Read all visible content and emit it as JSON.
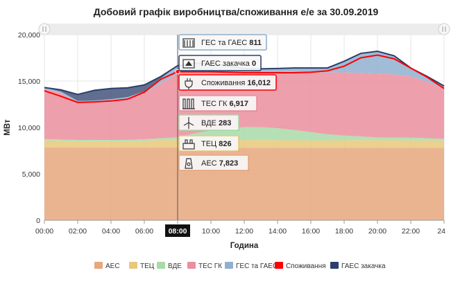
{
  "chart_data": {
    "type": "area",
    "title": "Добовий графік виробництва/споживання е/е за 30.09.2019",
    "ylabel": "МВт",
    "xlabel": "Година",
    "ylim": [
      0,
      20000
    ],
    "xlim": [
      0,
      24
    ],
    "yticks": [
      0,
      5000,
      10000,
      15000,
      20000
    ],
    "ytick_labels": [
      "0",
      "5,000",
      "10,000",
      "15,000",
      "20,000"
    ],
    "xticks": [
      0,
      2,
      4,
      6,
      8,
      10,
      12,
      14,
      16,
      18,
      20,
      22,
      24
    ],
    "xtick_labels": [
      "00:00",
      "02:00",
      "04:00",
      "06:00",
      "08:00",
      "10:00",
      "12:00",
      "14:00",
      "16:00",
      "18:00",
      "20:00",
      "22:00",
      "24"
    ],
    "highlight_x": 8,
    "x": [
      0,
      1,
      2,
      3,
      4,
      5,
      6,
      7,
      8,
      9,
      10,
      11,
      12,
      13,
      14,
      15,
      16,
      17,
      18,
      19,
      20,
      21,
      22,
      23,
      24
    ],
    "series": [
      {
        "name": "АЕС",
        "color": "#e8a77d",
        "stack": true,
        "values": [
          7850,
          7840,
          7830,
          7830,
          7830,
          7830,
          7830,
          7825,
          7823,
          7820,
          7820,
          7820,
          7820,
          7820,
          7820,
          7820,
          7820,
          7820,
          7820,
          7820,
          7820,
          7820,
          7820,
          7820,
          7820
        ]
      },
      {
        "name": "ТЕЦ",
        "color": "#e8c87a",
        "stack": true,
        "values": [
          750,
          720,
          700,
          690,
          690,
          700,
          740,
          800,
          826,
          840,
          840,
          840,
          830,
          820,
          810,
          800,
          790,
          790,
          800,
          810,
          810,
          800,
          790,
          770,
          750
        ]
      },
      {
        "name": "ВДЕ",
        "color": "#a8dba8",
        "stack": true,
        "values": [
          150,
          140,
          130,
          130,
          130,
          140,
          160,
          220,
          283,
          700,
          1000,
          1250,
          1400,
          1400,
          1300,
          1100,
          900,
          650,
          500,
          400,
          300,
          280,
          300,
          250,
          200
        ]
      },
      {
        "name": "ТЕС ГК",
        "color": "#eb8e9e",
        "stack": true,
        "values": [
          5400,
          5000,
          4050,
          4100,
          4250,
          4450,
          4950,
          5900,
          6917,
          6800,
          6650,
          6250,
          5900,
          5880,
          6020,
          6290,
          6500,
          6650,
          6810,
          6850,
          6880,
          6820,
          6590,
          6090,
          5400
        ]
      },
      {
        "name": "ГЕС та ГАЕС",
        "color": "#8fb0cf",
        "stack": true,
        "values": [
          150,
          150,
          150,
          150,
          150,
          150,
          200,
          550,
          811,
          750,
          600,
          450,
          400,
          400,
          400,
          400,
          400,
          500,
          1200,
          2100,
          2400,
          2000,
          900,
          550,
          300
        ]
      },
      {
        "name": "Споживання",
        "color": "#ff0000",
        "stack": false,
        "values": [
          13950,
          13350,
          12700,
          12750,
          12850,
          13050,
          13800,
          15200,
          16012,
          16000,
          16000,
          15950,
          15900,
          15900,
          15900,
          15900,
          15950,
          16100,
          16600,
          17500,
          17800,
          17400,
          16400,
          15400,
          14200
        ]
      },
      {
        "name": "ГАЕС закачка",
        "color": "#2c3e6b",
        "stack": false,
        "values": [
          0,
          200,
          700,
          1100,
          1150,
          1000,
          700,
          200,
          0,
          0,
          0,
          0,
          0,
          0,
          0,
          0,
          0,
          0,
          0,
          0,
          0,
          0,
          0,
          0,
          0
        ]
      }
    ],
    "tooltip": [
      {
        "label": "ГЕС та ГАЕС",
        "value": "811",
        "icon": "hydro-icon",
        "border": "#8fb0cf"
      },
      {
        "label": "ГАЕС закачка",
        "value": "0",
        "icon": "pump-icon",
        "border": "#2c3e6b"
      },
      {
        "label": "Споживання",
        "value": "16,012",
        "icon": "plug-icon",
        "border": "#ff0000"
      },
      {
        "label": "ТЕС ГК",
        "value": "6,917",
        "icon": "thermal-icon",
        "border": "#eb8e9e"
      },
      {
        "label": "ВДЕ",
        "value": "283",
        "icon": "wind-icon",
        "border": "#a8dba8"
      },
      {
        "label": "ТЕЦ",
        "value": "826",
        "icon": "chp-icon",
        "border": "#e8c87a"
      },
      {
        "label": "АЕС",
        "value": "7,823",
        "icon": "nuclear-icon",
        "border": "#e8a77d"
      }
    ],
    "legend": [
      "АЕС",
      "ТЕЦ",
      "ВДЕ",
      "ТЕС ГК",
      "ГЕС та ГАЕС",
      "Споживання",
      "ГАЕС закачка"
    ],
    "legend_position": "bottom"
  }
}
